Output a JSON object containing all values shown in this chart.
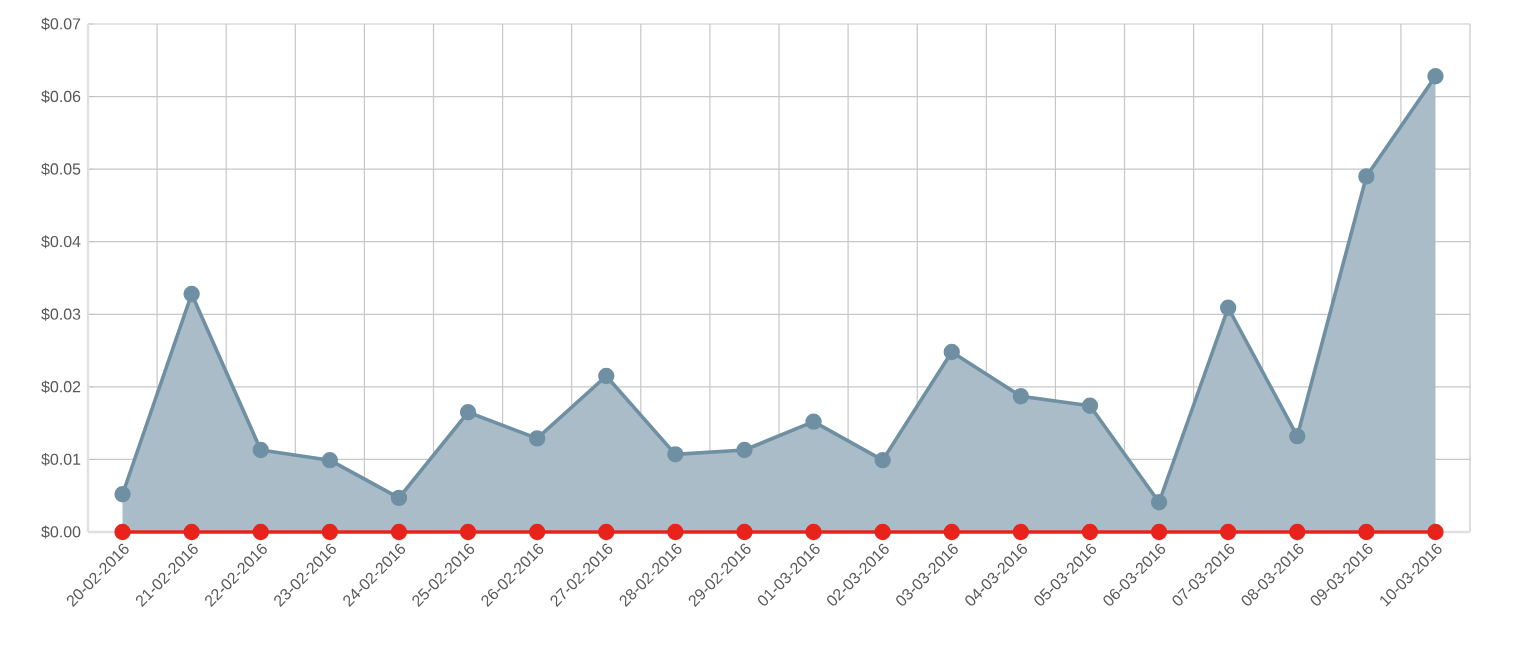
{
  "chart_data": {
    "type": "area",
    "categories": [
      "20-02-2016",
      "21-02-2016",
      "22-02-2016",
      "23-02-2016",
      "24-02-2016",
      "25-02-2016",
      "26-02-2016",
      "27-02-2016",
      "28-02-2016",
      "29-02-2016",
      "01-03-2016",
      "02-03-2016",
      "03-03-2016",
      "04-03-2016",
      "05-03-2016",
      "06-03-2016",
      "07-03-2016",
      "08-03-2016",
      "09-03-2016",
      "10-03-2016"
    ],
    "series": [
      {
        "color": "#6f8fa3",
        "values": [
          0.0052,
          0.0328,
          0.0113,
          0.0099,
          0.0047,
          0.0165,
          0.0129,
          0.0215,
          0.0107,
          0.0113,
          0.0152,
          0.0099,
          0.0248,
          0.0187,
          0.0174,
          0.0041,
          0.0309,
          0.0132,
          0.049,
          0.0628
        ]
      },
      {
        "type": "line",
        "color": "#e8231c",
        "values": [
          0,
          0,
          0,
          0,
          0,
          0,
          0,
          0,
          0,
          0,
          0,
          0,
          0,
          0,
          0,
          0,
          0,
          0,
          0,
          0
        ]
      }
    ],
    "ylim": [
      0,
      0.07
    ],
    "yticks": [
      {
        "value": 0,
        "label": "$0.00"
      },
      {
        "value": 0.01,
        "label": "$0.01"
      },
      {
        "value": 0.02,
        "label": "$0.02"
      },
      {
        "value": 0.03,
        "label": "$0.03"
      },
      {
        "value": 0.04,
        "label": "$0.04"
      },
      {
        "value": 0.05,
        "label": "$0.05"
      },
      {
        "value": 0.06,
        "label": "$0.06"
      },
      {
        "value": 0.07,
        "label": "$0.07"
      }
    ],
    "grid": true,
    "marker": "circle",
    "legend": false
  }
}
